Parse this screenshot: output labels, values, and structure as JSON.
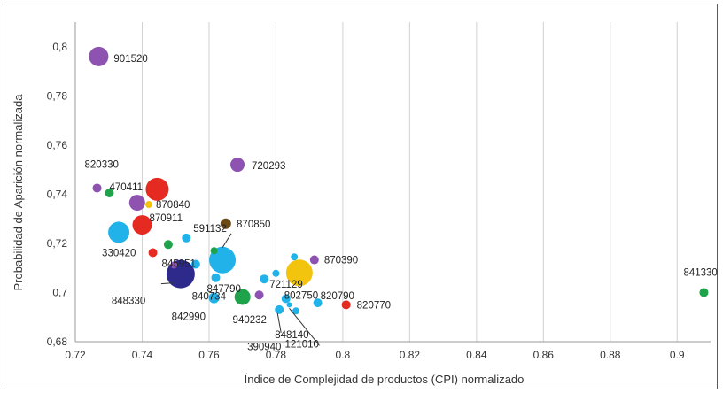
{
  "chart_data": {
    "type": "scatter",
    "title": "",
    "xlabel": "Índice de Complejidad de productos (CPI) normalizado",
    "ylabel": "Probabilidad de Aparición normalizada",
    "xlim": [
      0.72,
      0.91
    ],
    "ylim": [
      0.68,
      0.81
    ],
    "xticks": [
      "0.72",
      "0.74",
      "0.76",
      "0.78",
      "0.8",
      "0.82",
      "0.84",
      "0.86",
      "0.88",
      "0.9"
    ],
    "yticks": [
      "0,68",
      "0,7",
      "0,72",
      "0,74",
      "0,76",
      "0,78",
      "0,8"
    ],
    "grid": "vertical",
    "legend": "none",
    "points": [
      {
        "x": 0.727,
        "y": 0.796,
        "size": 11,
        "color": "#8e52b0",
        "label": "901520"
      },
      {
        "x": 0.7685,
        "y": 0.752,
        "size": 8,
        "color": "#8e52b0",
        "label": "720293"
      },
      {
        "x": 0.7265,
        "y": 0.7425,
        "size": 5,
        "color": "#8e52b0",
        "label": "820330"
      },
      {
        "x": 0.7302,
        "y": 0.7405,
        "size": 5,
        "color": "#1fa34a",
        "label": "470411"
      },
      {
        "x": 0.7445,
        "y": 0.742,
        "size": 13,
        "color": "#e52a22",
        "label": ""
      },
      {
        "x": 0.7385,
        "y": 0.7365,
        "size": 9,
        "color": "#8e52b0",
        "label": ""
      },
      {
        "x": 0.742,
        "y": 0.7358,
        "size": 4,
        "color": "#f2c40e",
        "label": "870840"
      },
      {
        "x": 0.74,
        "y": 0.7275,
        "size": 11,
        "color": "#e52a22",
        "label": "870911"
      },
      {
        "x": 0.733,
        "y": 0.7245,
        "size": 12,
        "color": "#22b2ea",
        "label": "330420"
      },
      {
        "x": 0.765,
        "y": 0.728,
        "size": 6,
        "color": "#6b4a14",
        "label": ""
      },
      {
        "x": 0.7532,
        "y": 0.7222,
        "size": 5,
        "color": "#22b2ea",
        "label": "591132"
      },
      {
        "x": 0.7478,
        "y": 0.7195,
        "size": 5,
        "color": "#1fa34a",
        "label": ""
      },
      {
        "x": 0.7432,
        "y": 0.7162,
        "size": 5,
        "color": "#e52a22",
        "label": "845951"
      },
      {
        "x": 0.7615,
        "y": 0.717,
        "size": 4,
        "color": "#1fa34a",
        "label": ""
      },
      {
        "x": 0.764,
        "y": 0.7132,
        "size": 15,
        "color": "#22b2ea",
        "label": "870850"
      },
      {
        "x": 0.756,
        "y": 0.7115,
        "size": 5,
        "color": "#22b2ea",
        "label": ""
      },
      {
        "x": 0.7495,
        "y": 0.7112,
        "size": 4,
        "color": "#8e52b0",
        "label": ""
      },
      {
        "x": 0.7515,
        "y": 0.7075,
        "size": 16,
        "color": "#2e2a8c",
        "label": "848330"
      },
      {
        "x": 0.762,
        "y": 0.706,
        "size": 5,
        "color": "#22b2ea",
        "label": "847790"
      },
      {
        "x": 0.7765,
        "y": 0.7055,
        "size": 5,
        "color": "#22b2ea",
        "label": "721129"
      },
      {
        "x": 0.78,
        "y": 0.7078,
        "size": 4,
        "color": "#22b2ea",
        "label": ""
      },
      {
        "x": 0.7855,
        "y": 0.7145,
        "size": 4,
        "color": "#22b2ea",
        "label": ""
      },
      {
        "x": 0.787,
        "y": 0.708,
        "size": 15,
        "color": "#f2c40e",
        "label": ""
      },
      {
        "x": 0.7915,
        "y": 0.7133,
        "size": 5,
        "color": "#8e52b0",
        "label": "870390"
      },
      {
        "x": 0.7615,
        "y": 0.6978,
        "size": 6,
        "color": "#22b2ea",
        "label": "840734"
      },
      {
        "x": 0.77,
        "y": 0.6982,
        "size": 9,
        "color": "#1fa34a",
        "label": "842990"
      },
      {
        "x": 0.775,
        "y": 0.699,
        "size": 5,
        "color": "#8e52b0",
        "label": "940232"
      },
      {
        "x": 0.783,
        "y": 0.6975,
        "size": 5,
        "color": "#22b2ea",
        "label": "802750"
      },
      {
        "x": 0.781,
        "y": 0.693,
        "size": 5,
        "color": "#22b2ea",
        "label": "848140"
      },
      {
        "x": 0.786,
        "y": 0.6925,
        "size": 4,
        "color": "#22b2ea",
        "label": "390940"
      },
      {
        "x": 0.7925,
        "y": 0.6958,
        "size": 5,
        "color": "#22b2ea",
        "label": "820790"
      },
      {
        "x": 0.801,
        "y": 0.695,
        "size": 5,
        "color": "#e52a22",
        "label": "820770"
      },
      {
        "x": 0.784,
        "y": 0.695,
        "size": 3,
        "color": "#22b2ea",
        "label": "121010"
      },
      {
        "x": 0.908,
        "y": 0.7,
        "size": 5,
        "color": "#1fa34a",
        "label": "841330"
      }
    ]
  }
}
